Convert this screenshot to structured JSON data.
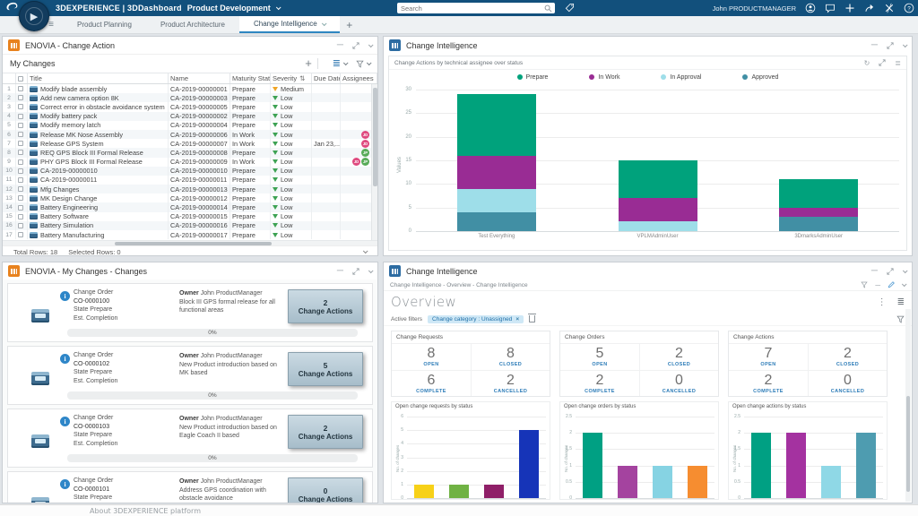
{
  "topbar": {
    "brand": "3DEXPERIENCE | 3DDashboard",
    "dashboard_name": "Product Development",
    "search_placeholder": "Search",
    "user": "John PRODUCTMANAGER",
    "icons": [
      "user-icon",
      "chat-icon",
      "add-icon",
      "share-icon",
      "media-icon",
      "help-icon"
    ]
  },
  "tabs": {
    "items": [
      "Product Planning",
      "Product Architecture",
      "Change Intelligence"
    ],
    "active": "Change Intelligence"
  },
  "change_action": {
    "title": "ENOVIA - Change Action",
    "toolbar_label": "My Changes",
    "columns": [
      "Title",
      "Name",
      "Maturity State",
      "Severity",
      "Due Date",
      "Assignees"
    ],
    "rows": [
      {
        "n": 1,
        "title": "Modify blade assembly",
        "name": "CA-2019-00000001",
        "state": "Prepare",
        "severity": "Medium",
        "due": "",
        "assignees": []
      },
      {
        "n": 2,
        "title": "Add new camera option 8K",
        "name": "CA-2019-00000003",
        "state": "Prepare",
        "severity": "Low",
        "due": "",
        "assignees": []
      },
      {
        "n": 3,
        "title": "Correct error in obstacle avoidance system",
        "name": "CA-2019-00000005",
        "state": "Prepare",
        "severity": "Low",
        "due": "",
        "assignees": []
      },
      {
        "n": 4,
        "title": "Modify battery pack",
        "name": "CA-2019-00000002",
        "state": "Prepare",
        "severity": "Low",
        "due": "",
        "assignees": []
      },
      {
        "n": 5,
        "title": "Modify memory latch",
        "name": "CA-2019-00000004",
        "state": "Prepare",
        "severity": "Low",
        "due": "",
        "assignees": []
      },
      {
        "n": 6,
        "title": "Release MK Nose Assembly",
        "name": "CA-2019-00000006",
        "state": "In Work",
        "severity": "Low",
        "due": "",
        "assignees": [
          "JD"
        ]
      },
      {
        "n": 7,
        "title": "Release GPS System",
        "name": "CA-2019-00000007",
        "state": "In Work",
        "severity": "Low",
        "due": "Jan 23,...",
        "assignees": [
          "JD"
        ]
      },
      {
        "n": 8,
        "title": "REQ GPS Block III Formal Release",
        "name": "CA-2019-00000008",
        "state": "Prepare",
        "severity": "Low",
        "due": "",
        "assignees": [
          "JP"
        ]
      },
      {
        "n": 9,
        "title": "PHY GPS Block III Formal Release",
        "name": "CA-2019-00000009",
        "state": "In Work",
        "severity": "Low",
        "due": "",
        "assignees": [
          "JD",
          "JP"
        ]
      },
      {
        "n": 10,
        "title": "CA-2019-00000010",
        "name": "CA-2019-00000010",
        "state": "Prepare",
        "severity": "Low",
        "due": "",
        "assignees": []
      },
      {
        "n": 11,
        "title": "CA-2019-00000011",
        "name": "CA-2019-00000011",
        "state": "Prepare",
        "severity": "Low",
        "due": "",
        "assignees": []
      },
      {
        "n": 12,
        "title": "Mfg Changes",
        "name": "CA-2019-00000013",
        "state": "Prepare",
        "severity": "Low",
        "due": "",
        "assignees": []
      },
      {
        "n": 13,
        "title": "MK Design Change",
        "name": "CA-2019-00000012",
        "state": "Prepare",
        "severity": "Low",
        "due": "",
        "assignees": []
      },
      {
        "n": 14,
        "title": "Battery Engineering",
        "name": "CA-2019-00000014",
        "state": "Prepare",
        "severity": "Low",
        "due": "",
        "assignees": []
      },
      {
        "n": 15,
        "title": "Battery Software",
        "name": "CA-2019-00000015",
        "state": "Prepare",
        "severity": "Low",
        "due": "",
        "assignees": []
      },
      {
        "n": 16,
        "title": "Battery Simulation",
        "name": "CA-2019-00000016",
        "state": "Prepare",
        "severity": "Low",
        "due": "",
        "assignees": []
      },
      {
        "n": 17,
        "title": "Battery Manufacturing",
        "name": "CA-2019-00000017",
        "state": "Prepare",
        "severity": "Low",
        "due": "",
        "assignees": []
      }
    ],
    "avatar_colors": {
      "JD": "#df4a7f",
      "JP": "#58ab58"
    },
    "total_rows_label": "Total Rows: 18",
    "selected_rows_label": "Selected Rows: 0"
  },
  "chart_widget": {
    "title": "Change Intelligence"
  },
  "my_changes": {
    "title": "ENOVIA - My Changes - Changes",
    "labels": {
      "type": "Change Order",
      "state": "State",
      "est": "Est. Completion",
      "owner": "Owner",
      "button": "Change Actions"
    },
    "cards": [
      {
        "id": "CO-0000100",
        "state": "Prepare",
        "owner": "John ProductManager",
        "desc": "Block III GPS formal release for all functional areas",
        "actions_count": 2,
        "progress": "0%"
      },
      {
        "id": "CO-0000102",
        "state": "Prepare",
        "owner": "John ProductManager",
        "desc": "New Product introduction based on MK based",
        "actions_count": 5,
        "progress": "0%"
      },
      {
        "id": "CO-0000103",
        "state": "Prepare",
        "owner": "John ProductManager",
        "desc": "New Product introduction based on Eagle Coach II based",
        "actions_count": 2,
        "progress": "0%"
      },
      {
        "id": "CO-0000101",
        "state": "Prepare",
        "owner": "John ProductManager",
        "desc": "Address GPS coordination with obstacle avoidance",
        "actions_count": 0,
        "progress": null
      }
    ]
  },
  "overview": {
    "widget_title": "Change Intelligence",
    "breadcrumb": "Change Intelligence - Overview - Change Intelligence",
    "title": "Overview",
    "active_filters_label": "Active filters",
    "filter_chip": "Change category : Unassigned",
    "panels": [
      {
        "title": "Change Requests",
        "stats": [
          {
            "value": 8,
            "label": "Open"
          },
          {
            "value": 8,
            "label": "Closed"
          },
          {
            "value": 6,
            "label": "Complete"
          },
          {
            "value": 2,
            "label": "Cancelled"
          }
        ]
      },
      {
        "title": "Change Orders",
        "stats": [
          {
            "value": 5,
            "label": "Open"
          },
          {
            "value": 2,
            "label": "Closed"
          },
          {
            "value": 2,
            "label": "Complete"
          },
          {
            "value": 0,
            "label": "Cancelled"
          }
        ]
      },
      {
        "title": "Change Actions",
        "stats": [
          {
            "value": 7,
            "label": "Open"
          },
          {
            "value": 2,
            "label": "Closed"
          },
          {
            "value": 2,
            "label": "Complete"
          },
          {
            "value": 0,
            "label": "Cancelled"
          }
        ]
      }
    ]
  },
  "chart_data": [
    {
      "type": "bar",
      "stacked": true,
      "title": "Change Actions by technical assignee over status",
      "categories": [
        "Test Everything",
        "VPLMAdminUser",
        "3DmarksAdminUser"
      ],
      "series": [
        {
          "name": "Approved",
          "color": "#418fa4",
          "values": [
            4,
            0,
            3
          ]
        },
        {
          "name": "In Approval",
          "color": "#9edee9",
          "values": [
            5,
            2,
            0
          ]
        },
        {
          "name": "In Work",
          "color": "#992c94",
          "values": [
            7,
            5,
            2
          ]
        },
        {
          "name": "Prepare",
          "color": "#00a27c",
          "values": [
            13,
            8,
            6
          ]
        }
      ],
      "legend_order": [
        "Prepare",
        "In Work",
        "In Approval",
        "Approved"
      ],
      "legend_position": "top",
      "xlabel": "",
      "ylabel": "Values",
      "ylim": [
        0,
        30
      ],
      "yticks": [
        0,
        5,
        10,
        15,
        20,
        25,
        30
      ],
      "grid": true
    },
    {
      "type": "bar",
      "title": "Open change requests by status",
      "ylabel": "No. of changes",
      "ylim": [
        0,
        6
      ],
      "yticks": [
        0,
        1,
        2,
        3,
        4,
        5,
        6
      ],
      "values": [
        1,
        1,
        1,
        5
      ],
      "colors": [
        "#f7d118",
        "#70b244",
        "#8f1f68",
        "#1634b8"
      ]
    },
    {
      "type": "bar",
      "title": "Open change orders by status",
      "ylabel": "No. of changes",
      "ylim": [
        0,
        2.5
      ],
      "yticks": [
        0,
        0.5,
        1,
        1.5,
        2,
        2.5
      ],
      "values": [
        2,
        1,
        1,
        1
      ],
      "colors": [
        "#00a083",
        "#a4439f",
        "#86d3e3",
        "#f68d30"
      ]
    },
    {
      "type": "bar",
      "title": "Open change actions by status",
      "ylabel": "No. of changes",
      "ylim": [
        0,
        2.5
      ],
      "yticks": [
        0,
        0.5,
        1,
        1.5,
        2,
        2.5
      ],
      "values": [
        2,
        2,
        1,
        2
      ],
      "colors": [
        "#00a083",
        "#a432a0",
        "#8fd8e6",
        "#4e9cb0"
      ]
    }
  ],
  "footer": {
    "about": "About 3DEXPERIENCE platform"
  }
}
